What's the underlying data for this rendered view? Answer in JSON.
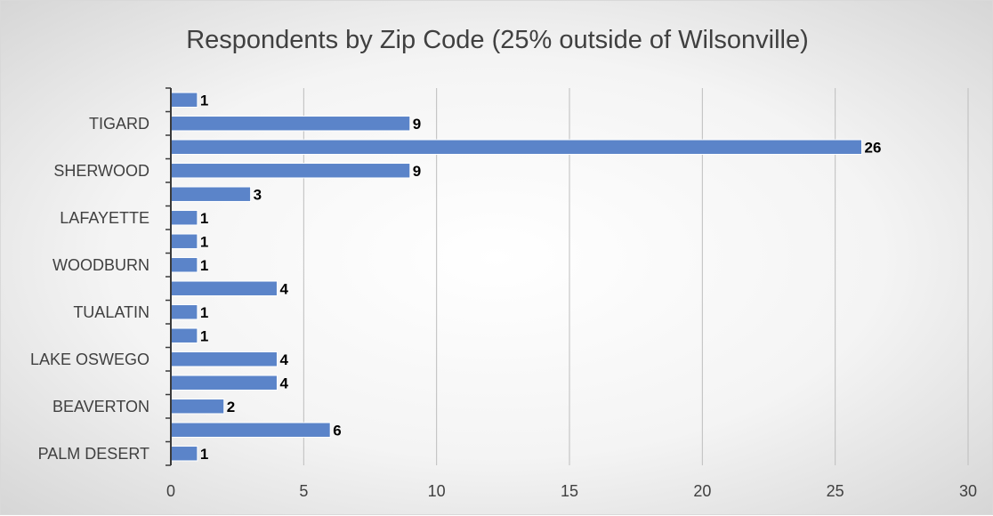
{
  "chart_data": {
    "type": "bar",
    "orientation": "horizontal",
    "title": "Respondents by Zip Code (25% outside of Wilsonville)",
    "categories": [
      "",
      "TIGARD",
      "",
      "SHERWOOD",
      "",
      "LAFAYETTE",
      "",
      "WOODBURN",
      "",
      "TUALATIN",
      "",
      "LAKE OSWEGO",
      "",
      "BEAVERTON",
      "",
      "PALM DESERT"
    ],
    "values": [
      1,
      9,
      26,
      9,
      3,
      1,
      1,
      1,
      4,
      1,
      1,
      4,
      4,
      2,
      6,
      1
    ],
    "xlim": [
      0,
      30
    ],
    "x_ticks": [
      "0",
      "5",
      "10",
      "15",
      "20",
      "25",
      "30"
    ],
    "xlabel": "",
    "ylabel": "",
    "grid": true,
    "bar_color": "#5b84c9",
    "data_labels": true
  }
}
